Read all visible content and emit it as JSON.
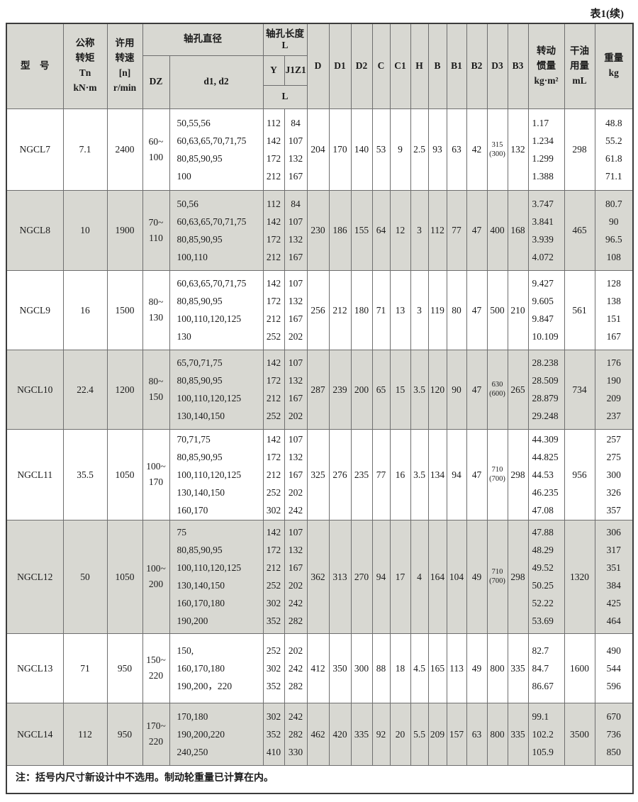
{
  "page": {
    "title": "表1(续)",
    "note": "注：括号内尺寸新设计中不选用。制动轮重量已计算在内。"
  },
  "header": {
    "model": "型　号",
    "torque": [
      "公称",
      "转矩",
      "Tn",
      "kN·m"
    ],
    "speed": [
      "许用",
      "转速",
      "[n]",
      "r/min"
    ],
    "bore_diameter": "轴孔直径",
    "dz": "DZ",
    "d1d2": "d1, d2",
    "bore_length": [
      "轴孔长度",
      "L"
    ],
    "y": "Y",
    "j1z1": "J1Z1",
    "l": "L",
    "dims": [
      "D",
      "D1",
      "D2",
      "C",
      "C1",
      "H",
      "B",
      "B1",
      "B2",
      "D3",
      "B3"
    ],
    "inertia": [
      "转动",
      "惯量",
      "kg·m²"
    ],
    "grease": [
      "干油",
      "用量",
      "mL"
    ],
    "weight": [
      "重量",
      "kg"
    ]
  },
  "rows": [
    {
      "model": "NGCL7",
      "torque": "7.1",
      "speed": "2400",
      "dz": [
        "60~",
        "100"
      ],
      "d1d2": [
        "50,55,56",
        "60,63,65,70,71,75",
        "80,85,90,95",
        "100"
      ],
      "y": [
        "112",
        "142",
        "172",
        "212"
      ],
      "j1z1": [
        "84",
        "107",
        "132",
        "167"
      ],
      "D": "204",
      "D1": "170",
      "D2": "140",
      "C": "53",
      "C1": "9",
      "H": "2.5",
      "B": "93",
      "B1": "63",
      "B2": "42",
      "D3": [
        "315",
        "(300)"
      ],
      "B3": "132",
      "inertia": [
        "1.17",
        "1.234",
        "1.299",
        "1.388"
      ],
      "grease": "298",
      "weight": [
        "48.8",
        "55.2",
        "61.8",
        "71.1"
      ]
    },
    {
      "model": "NGCL8",
      "torque": "10",
      "speed": "1900",
      "dz": [
        "70~",
        "110"
      ],
      "d1d2": [
        "50,56",
        "60,63,65,70,71,75",
        "80,85,90,95",
        "100,110"
      ],
      "y": [
        "112",
        "142",
        "172",
        "212"
      ],
      "j1z1": [
        "84",
        "107",
        "132",
        "167"
      ],
      "D": "230",
      "D1": "186",
      "D2": "155",
      "C": "64",
      "C1": "12",
      "H": "3",
      "B": "112",
      "B1": "77",
      "B2": "47",
      "D3": "400",
      "B3": "168",
      "inertia": [
        "3.747",
        "3.841",
        "3.939",
        "4.072"
      ],
      "grease": "465",
      "weight": [
        "80.7",
        "90",
        "96.5",
        "108"
      ]
    },
    {
      "model": "NGCL9",
      "torque": "16",
      "speed": "1500",
      "dz": [
        "80~",
        "130"
      ],
      "d1d2": [
        "60,63,65,70,71,75",
        "80,85,90,95",
        "100,110,120,125",
        "130"
      ],
      "y": [
        "142",
        "172",
        "212",
        "252"
      ],
      "j1z1": [
        "107",
        "132",
        "167",
        "202"
      ],
      "D": "256",
      "D1": "212",
      "D2": "180",
      "C": "71",
      "C1": "13",
      "H": "3",
      "B": "119",
      "B1": "80",
      "B2": "47",
      "D3": "500",
      "B3": "210",
      "inertia": [
        "9.427",
        "9.605",
        "9.847",
        "10.109"
      ],
      "grease": "561",
      "weight": [
        "128",
        "138",
        "151",
        "167"
      ]
    },
    {
      "model": "NGCL10",
      "torque": "22.4",
      "speed": "1200",
      "dz": [
        "80~",
        "150"
      ],
      "d1d2": [
        "65,70,71,75",
        "80,85,90,95",
        "100,110,120,125",
        "130,140,150"
      ],
      "y": [
        "142",
        "172",
        "212",
        "252"
      ],
      "j1z1": [
        "107",
        "132",
        "167",
        "202"
      ],
      "D": "287",
      "D1": "239",
      "D2": "200",
      "C": "65",
      "C1": "15",
      "H": "3.5",
      "B": "120",
      "B1": "90",
      "B2": "47",
      "D3": [
        "630",
        "(600)"
      ],
      "B3": "265",
      "inertia": [
        "28.238",
        "28.509",
        "28.879",
        "29.248"
      ],
      "grease": "734",
      "weight": [
        "176",
        "190",
        "209",
        "237"
      ]
    },
    {
      "model": "NGCL11",
      "torque": "35.5",
      "speed": "1050",
      "dz": [
        "100~",
        "170"
      ],
      "d1d2": [
        "70,71,75",
        "80,85,90,95",
        "100,110,120,125",
        "130,140,150",
        "160,170"
      ],
      "y": [
        "142",
        "172",
        "212",
        "252",
        "302"
      ],
      "j1z1": [
        "107",
        "132",
        "167",
        "202",
        "242"
      ],
      "D": "325",
      "D1": "276",
      "D2": "235",
      "C": "77",
      "C1": "16",
      "H": "3.5",
      "B": "134",
      "B1": "94",
      "B2": "47",
      "D3": [
        "710",
        "(700)"
      ],
      "B3": "298",
      "inertia": [
        "44.309",
        "44.825",
        "44.53",
        "46.235",
        "47.08"
      ],
      "grease": "956",
      "weight": [
        "257",
        "275",
        "300",
        "326",
        "357"
      ]
    },
    {
      "model": "NGCL12",
      "torque": "50",
      "speed": "1050",
      "dz": [
        "100~",
        "200"
      ],
      "d1d2": [
        "75",
        "80,85,90,95",
        "100,110,120,125",
        "130,140,150",
        "160,170,180",
        "190,200"
      ],
      "y": [
        "142",
        "172",
        "212",
        "252",
        "302",
        "352"
      ],
      "j1z1": [
        "107",
        "132",
        "167",
        "202",
        "242",
        "282"
      ],
      "D": "362",
      "D1": "313",
      "D2": "270",
      "C": "94",
      "C1": "17",
      "H": "4",
      "B": "164",
      "B1": "104",
      "B2": "49",
      "D3": [
        "710",
        "(700)"
      ],
      "B3": "298",
      "inertia": [
        "47.88",
        "48.29",
        "49.52",
        "50.25",
        "52.22",
        "53.69"
      ],
      "grease": "1320",
      "weight": [
        "306",
        "317",
        "351",
        "384",
        "425",
        "464"
      ]
    },
    {
      "model": "NGCL13",
      "torque": "71",
      "speed": "950",
      "dz": [
        "150~",
        "220"
      ],
      "d1d2": [
        "150,",
        "160,170,180",
        "190,200，220"
      ],
      "y": [
        "252",
        "302",
        "352"
      ],
      "j1z1": [
        "202",
        "242",
        "282"
      ],
      "D": "412",
      "D1": "350",
      "D2": "300",
      "C": "88",
      "C1": "18",
      "H": "4.5",
      "B": "165",
      "B1": "113",
      "B2": "49",
      "D3": "800",
      "B3": "335",
      "inertia": [
        "82.7",
        "84.7",
        "86.67"
      ],
      "grease": "1600",
      "weight": [
        "490",
        "544",
        "596"
      ]
    },
    {
      "model": "NGCL14",
      "torque": "112",
      "speed": "950",
      "dz": [
        "170~",
        "220"
      ],
      "d1d2": [
        "170,180",
        "190,200,220",
        "240,250"
      ],
      "y": [
        "302",
        "352",
        "410"
      ],
      "j1z1": [
        "242",
        "282",
        "330"
      ],
      "D": "462",
      "D1": "420",
      "D2": "335",
      "C": "92",
      "C1": "20",
      "H": "5.5",
      "B": "209",
      "B1": "157",
      "B2": "63",
      "D3": "800",
      "B3": "335",
      "inertia": [
        "99.1",
        "102.2",
        "105.9"
      ],
      "grease": "3500",
      "weight": [
        "670",
        "736",
        "850"
      ]
    }
  ]
}
